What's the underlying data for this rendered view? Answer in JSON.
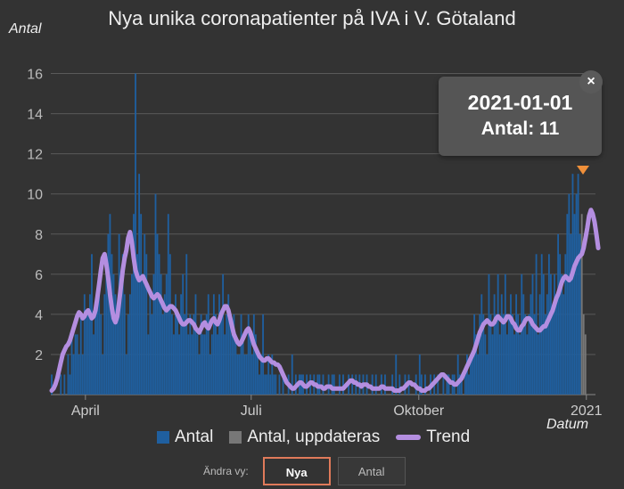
{
  "title": "Nya unika coronapatienter på IVA i V. Götaland",
  "tooltip": {
    "date": "2021-01-01",
    "count_label": "Antal: 11",
    "close": "×"
  },
  "controls": {
    "label": "Ändra vy:",
    "active": "Nya",
    "inactive": "Antal"
  },
  "colors": {
    "bar": "#1f5f9f",
    "bar_updating": "#777777",
    "trend": "#b48ee0",
    "grid": "#5a5a5a",
    "marker": "#f0903a",
    "background": "#333333"
  },
  "chart_data": {
    "type": "bar",
    "ylabel": "Antal",
    "xlabel": "Datum",
    "ylim": [
      0,
      17
    ],
    "yticks": [
      2,
      4,
      6,
      8,
      10,
      12,
      14,
      16
    ],
    "x_start": "2020-03-13",
    "x_end": "2021-01-06",
    "xticks": [
      {
        "date": "2020-04-01",
        "label": "April"
      },
      {
        "date": "2020-07-01",
        "label": "Juli"
      },
      {
        "date": "2020-10-01",
        "label": "Oktober"
      },
      {
        "date": "2021-01-01",
        "label": "2021"
      }
    ],
    "legend": [
      "Antal",
      "Antal, uppdateras",
      "Trend"
    ],
    "series_antal": [
      1,
      0,
      0,
      0,
      0,
      1,
      0,
      1,
      0,
      2,
      1,
      3,
      2,
      3,
      3,
      2,
      4,
      2,
      5,
      4,
      4,
      5,
      7,
      3,
      4,
      5,
      6,
      4,
      2,
      5,
      6,
      8,
      9,
      7,
      6,
      5,
      4,
      8,
      6,
      7,
      5,
      2,
      4,
      5,
      6,
      9,
      16,
      7,
      11,
      9,
      6,
      8,
      7,
      3,
      5,
      4,
      6,
      10,
      8,
      7,
      6,
      4,
      5,
      6,
      9,
      7,
      4,
      3,
      5,
      4,
      3,
      5,
      6,
      4,
      7,
      3,
      4,
      3,
      4,
      5,
      3,
      2,
      4,
      3,
      3,
      4,
      5,
      2,
      3,
      5,
      4,
      3,
      5,
      4,
      6,
      3,
      4,
      5,
      4,
      3,
      4,
      3,
      2,
      2,
      4,
      3,
      2,
      2,
      4,
      3,
      2,
      4,
      3,
      2,
      1,
      2,
      4,
      1,
      1,
      2,
      1,
      2,
      1,
      1,
      0,
      1,
      0,
      1,
      0,
      0,
      1,
      0,
      2,
      0,
      1,
      0,
      1,
      1,
      1,
      0,
      1,
      0,
      1,
      0,
      1,
      0,
      1,
      1,
      0,
      1,
      0,
      0,
      1,
      0,
      1,
      1,
      0,
      0,
      1,
      0,
      1,
      0,
      0,
      1,
      0,
      1,
      0,
      1,
      0,
      1,
      0,
      1,
      0,
      1,
      0,
      0,
      1,
      0,
      1,
      0,
      0,
      1,
      0,
      1,
      0,
      0,
      0,
      1,
      0,
      2,
      0,
      1,
      0,
      0,
      1,
      0,
      1,
      0,
      0,
      0,
      1,
      0,
      2,
      1,
      0,
      1,
      0,
      0,
      1,
      0,
      1,
      0,
      1,
      0,
      0,
      1,
      0,
      1,
      1,
      0,
      1,
      1,
      0,
      2,
      1,
      1,
      0,
      1,
      2,
      1,
      2,
      2,
      4,
      3,
      2,
      4,
      5,
      4,
      3,
      2,
      6,
      4,
      3,
      5,
      4,
      6,
      3,
      5,
      4,
      6,
      3,
      4,
      5,
      4,
      3,
      5,
      4,
      3,
      6,
      5,
      4,
      3,
      4,
      5,
      6,
      4,
      7,
      3,
      5,
      7,
      6,
      4,
      5,
      7,
      6,
      4,
      6,
      5,
      8,
      7,
      6,
      5,
      7,
      9,
      10,
      8,
      11,
      9,
      10,
      11,
      8,
      9,
      4,
      3
    ],
    "updating_last_n": 3,
    "series_trend": [
      0.2,
      0.3,
      0.5,
      0.8,
      1.2,
      1.6,
      2.0,
      2.2,
      2.4,
      2.5,
      2.7,
      3.0,
      3.3,
      3.6,
      3.9,
      4.1,
      4.0,
      3.8,
      3.9,
      4.1,
      4.2,
      4.0,
      3.8,
      3.9,
      4.2,
      4.8,
      5.5,
      6.2,
      6.8,
      7.0,
      6.5,
      5.8,
      5.0,
      4.3,
      3.8,
      3.6,
      3.9,
      4.6,
      5.4,
      6.2,
      6.8,
      7.2,
      7.8,
      8.1,
      7.6,
      6.8,
      6.2,
      5.9,
      5.7,
      5.8,
      5.9,
      5.7,
      5.5,
      5.3,
      5.1,
      4.9,
      4.8,
      4.9,
      5.0,
      4.9,
      4.7,
      4.5,
      4.3,
      4.2,
      4.3,
      4.4,
      4.4,
      4.3,
      4.2,
      4.0,
      3.8,
      3.6,
      3.5,
      3.5,
      3.6,
      3.7,
      3.7,
      3.6,
      3.5,
      3.3,
      3.2,
      3.1,
      3.3,
      3.5,
      3.6,
      3.4,
      3.3,
      3.5,
      3.7,
      3.8,
      3.6,
      3.5,
      3.7,
      4.0,
      4.2,
      4.4,
      4.4,
      4.2,
      3.8,
      3.4,
      3.0,
      2.8,
      2.6,
      2.5,
      2.6,
      2.8,
      3.0,
      3.2,
      3.3,
      3.1,
      2.8,
      2.5,
      2.3,
      2.1,
      1.9,
      1.8,
      1.7,
      1.7,
      1.8,
      1.8,
      1.7,
      1.6,
      1.6,
      1.5,
      1.5,
      1.4,
      1.2,
      1.0,
      0.8,
      0.6,
      0.5,
      0.4,
      0.3,
      0.3,
      0.4,
      0.5,
      0.6,
      0.6,
      0.5,
      0.4,
      0.4,
      0.5,
      0.6,
      0.6,
      0.5,
      0.5,
      0.4,
      0.4,
      0.4,
      0.3,
      0.3,
      0.4,
      0.4,
      0.4,
      0.3,
      0.3,
      0.3,
      0.3,
      0.3,
      0.3,
      0.3,
      0.4,
      0.5,
      0.6,
      0.7,
      0.7,
      0.6,
      0.6,
      0.5,
      0.5,
      0.4,
      0.5,
      0.5,
      0.5,
      0.4,
      0.4,
      0.3,
      0.3,
      0.3,
      0.3,
      0.3,
      0.4,
      0.4,
      0.3,
      0.3,
      0.3,
      0.3,
      0.3,
      0.2,
      0.2,
      0.2,
      0.2,
      0.3,
      0.3,
      0.4,
      0.5,
      0.6,
      0.6,
      0.5,
      0.5,
      0.4,
      0.3,
      0.3,
      0.2,
      0.2,
      0.2,
      0.3,
      0.3,
      0.4,
      0.5,
      0.6,
      0.7,
      0.8,
      0.9,
      1.0,
      1.0,
      0.9,
      0.8,
      0.7,
      0.6,
      0.6,
      0.5,
      0.5,
      0.6,
      0.7,
      0.8,
      1.0,
      1.2,
      1.4,
      1.6,
      1.8,
      2.0,
      2.2,
      2.5,
      2.8,
      3.1,
      3.3,
      3.5,
      3.6,
      3.7,
      3.6,
      3.5,
      3.5,
      3.6,
      3.8,
      3.9,
      3.8,
      3.7,
      3.6,
      3.7,
      3.9,
      3.9,
      3.8,
      3.6,
      3.5,
      3.3,
      3.2,
      3.2,
      3.4,
      3.5,
      3.7,
      3.8,
      3.8,
      3.7,
      3.5,
      3.4,
      3.3,
      3.2,
      3.2,
      3.3,
      3.4,
      3.4,
      3.6,
      3.8,
      4.0,
      4.2,
      4.5,
      4.8,
      5.0,
      5.3,
      5.6,
      5.8,
      5.9,
      5.8,
      5.7,
      5.8,
      6.1,
      6.4,
      6.6,
      6.8,
      6.9,
      7.0,
      7.3,
      7.8,
      8.3,
      8.9,
      9.2,
      9.0,
      8.6,
      8.0,
      7.3
    ]
  }
}
